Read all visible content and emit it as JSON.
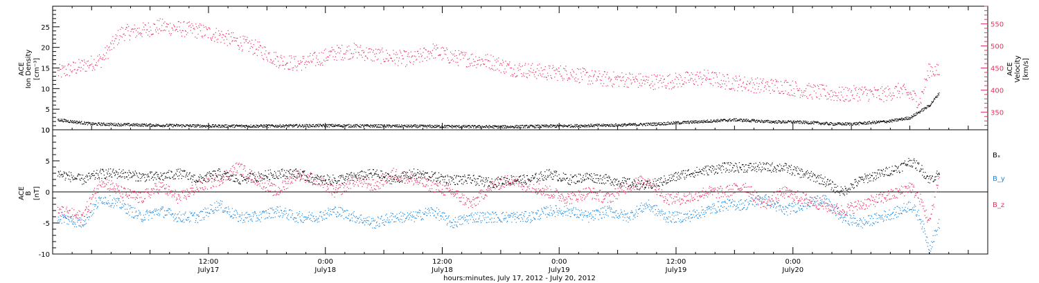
{
  "colors": {
    "black": "#000000",
    "velocity": "#e8305f",
    "bx": "#000000",
    "by": "#1a88e0",
    "bz": "#e8305f"
  },
  "xaxis": {
    "caption": "hours:minutes, July 17, 2012 - July 20, 2012",
    "ticks": [
      {
        "time": "12:00",
        "day": "July17"
      },
      {
        "time": "0:00",
        "day": "July18"
      },
      {
        "time": "12:00",
        "day": "July18"
      },
      {
        "time": "0:00",
        "day": "July19"
      },
      {
        "time": "12:00",
        "day": "July19"
      },
      {
        "time": "0:00",
        "day": "July20"
      }
    ]
  },
  "chart_data": [
    {
      "type": "scatter",
      "panel": "top",
      "ylabel_left": [
        "ACE",
        "Ion Density",
        "[cm⁻³]"
      ],
      "ylabel_right": [
        "ACE",
        "Velocity",
        "[km/s]"
      ],
      "ylim_left": [
        0,
        30
      ],
      "ylim_right": [
        310,
        590
      ],
      "yticks_left": [
        "0",
        "5",
        "10",
        "15",
        "20",
        "25"
      ],
      "yticks_right": [
        "350",
        "400",
        "450",
        "500",
        "550"
      ],
      "x_range_hours": [
        -4,
        92
      ],
      "series": [
        {
          "key": "density",
          "axis": "left",
          "x_hours": [
            -3.5,
            0,
            6,
            12,
            18,
            24,
            30,
            36,
            42,
            48,
            54,
            58,
            62,
            66,
            70,
            72,
            74,
            76,
            78,
            80,
            82,
            84,
            86,
            87
          ],
          "values": [
            2.5,
            1.5,
            1.2,
            1.0,
            1.0,
            1.1,
            1.0,
            0.9,
            0.8,
            1.0,
            1.2,
            1.5,
            2.0,
            2.5,
            2.0,
            2.0,
            1.8,
            1.5,
            1.5,
            1.8,
            2.2,
            3.0,
            6.0,
            9.0
          ]
        },
        {
          "key": "velocity",
          "axis": "right",
          "x_hours": [
            -3.5,
            -1,
            1,
            3,
            5,
            7,
            9,
            11,
            13,
            15,
            17,
            19,
            21,
            23,
            25,
            27,
            29,
            31,
            33,
            35,
            37,
            39,
            41,
            43,
            45,
            47,
            49,
            51,
            53,
            55,
            57,
            59,
            61,
            63,
            65,
            67,
            69,
            71,
            73,
            75,
            77,
            79,
            81,
            83,
            84,
            85,
            86,
            87
          ],
          "values": [
            440,
            455,
            470,
            530,
            535,
            545,
            540,
            535,
            525,
            510,
            495,
            470,
            460,
            470,
            485,
            490,
            480,
            475,
            470,
            490,
            475,
            470,
            465,
            450,
            445,
            440,
            440,
            430,
            425,
            425,
            420,
            420,
            425,
            430,
            420,
            415,
            410,
            410,
            400,
            395,
            390,
            395,
            390,
            400,
            390,
            375,
            450,
            440
          ]
        }
      ]
    },
    {
      "type": "scatter",
      "panel": "bottom",
      "ylabel_left": [
        "ACE",
        "B",
        "[nT]"
      ],
      "ylim": [
        -10,
        10
      ],
      "yticks": [
        "-10",
        "-5",
        "0",
        "5",
        "10"
      ],
      "x_range_hours": [
        -4,
        92
      ],
      "legend": [
        "Bₓ",
        "B_y",
        "B_z"
      ],
      "series": [
        {
          "key": "bx",
          "name": "Bₓ",
          "x_hours": [
            -3.5,
            -1,
            1,
            3,
            5,
            7,
            9,
            11,
            13,
            15,
            17,
            19,
            21,
            23,
            25,
            27,
            29,
            31,
            33,
            35,
            37,
            39,
            41,
            43,
            45,
            47,
            49,
            51,
            53,
            55,
            57,
            59,
            61,
            63,
            65,
            67,
            69,
            71,
            73,
            75,
            77,
            79,
            81,
            83,
            84,
            85,
            86,
            87
          ],
          "values": [
            3,
            2,
            3,
            3,
            2.5,
            2.5,
            3,
            2,
            3,
            2,
            2.5,
            3,
            3,
            2,
            2,
            2.5,
            3,
            2,
            3,
            2.5,
            2,
            2,
            1.5,
            2,
            2,
            3,
            2,
            2.5,
            2,
            1.5,
            1,
            2,
            3,
            3.5,
            4,
            4,
            4,
            4,
            3,
            2,
            0,
            2,
            3,
            4,
            5,
            4,
            2,
            3
          ]
        },
        {
          "key": "by",
          "name": "B_y",
          "x_hours": [
            -3.5,
            -1,
            1,
            3,
            5,
            7,
            9,
            11,
            13,
            15,
            17,
            19,
            21,
            23,
            25,
            27,
            29,
            31,
            33,
            35,
            37,
            39,
            41,
            43,
            45,
            47,
            49,
            51,
            53,
            55,
            57,
            59,
            61,
            63,
            65,
            67,
            69,
            71,
            73,
            75,
            77,
            79,
            81,
            83,
            84,
            85,
            86,
            87
          ],
          "values": [
            -4,
            -5,
            -1,
            -2,
            -4,
            -3,
            -4,
            -4,
            -2,
            -4,
            -4,
            -3,
            -4,
            -4,
            -3,
            -4,
            -5,
            -4,
            -4,
            -3,
            -5,
            -4,
            -4,
            -4,
            -4,
            -3,
            -3,
            -4,
            -3,
            -4,
            -2,
            -4,
            -4,
            -3,
            -2,
            -2,
            -1,
            -3,
            -2,
            -1,
            -4,
            -5,
            -4,
            -3,
            -2,
            -4,
            -9,
            -5
          ]
        },
        {
          "key": "bz",
          "name": "B_z",
          "x_hours": [
            -3.5,
            -1,
            1,
            3,
            5,
            7,
            9,
            11,
            13,
            15,
            17,
            19,
            21,
            23,
            25,
            27,
            29,
            31,
            33,
            35,
            37,
            39,
            41,
            43,
            45,
            47,
            49,
            51,
            53,
            55,
            57,
            59,
            61,
            63,
            65,
            67,
            69,
            71,
            73,
            75,
            77,
            79,
            81,
            83,
            84,
            85,
            86,
            87
          ],
          "values": [
            -3,
            -4,
            2,
            0,
            -1,
            1,
            -1,
            1,
            2,
            4,
            2,
            0,
            3,
            2,
            0,
            2,
            1,
            3,
            2,
            1,
            0,
            -2,
            1,
            2,
            1,
            0,
            -1,
            0,
            -1,
            1,
            2,
            -1,
            -1,
            0,
            0,
            1,
            -2,
            0,
            -1,
            -2,
            -3,
            -2,
            -1,
            0,
            1,
            -1,
            -5,
            3
          ]
        }
      ]
    }
  ]
}
